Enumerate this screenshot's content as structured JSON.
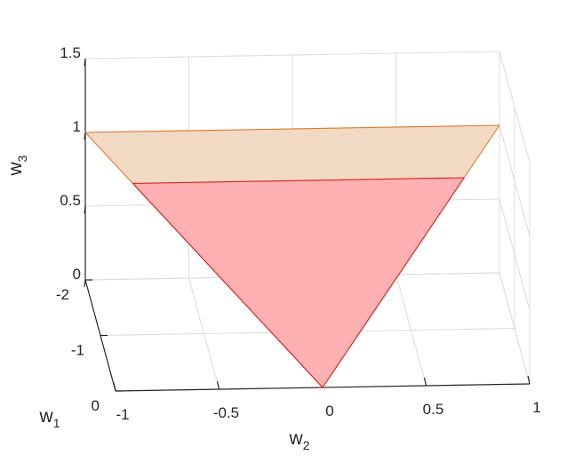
{
  "chart_data": {
    "type": "3d-surface",
    "title": "",
    "axes": {
      "w1": {
        "label": "w",
        "subscript": "1",
        "lim": [
          -2,
          0
        ],
        "ticks": [
          -2,
          -1,
          0
        ],
        "tick_labels": [
          "-2",
          "-1",
          "0"
        ]
      },
      "w2": {
        "label": "w",
        "subscript": "2",
        "lim": [
          -1,
          1
        ],
        "ticks": [
          -1,
          -0.5,
          0,
          0.5,
          1
        ],
        "tick_labels": [
          "-1",
          "-0.5",
          "0",
          "0.5",
          "1"
        ]
      },
      "w3": {
        "label": "w",
        "subscript": "3",
        "lim": [
          0,
          1.5
        ],
        "ticks": [
          0,
          0.5,
          1,
          1.5
        ],
        "tick_labels": [
          "0",
          "0.5",
          "1",
          "1.5"
        ]
      }
    },
    "grid": true,
    "surfaces": [
      {
        "name": "",
        "face_color": "#f2d9c4",
        "edge_color": "#e07a2e",
        "vertices": [
          {
            "w1": 0,
            "w2": 0,
            "w3": 0
          },
          {
            "w1": -2,
            "w2": -1,
            "w3": 1
          },
          {
            "w1": -2,
            "w2": 1,
            "w3": 1
          }
        ]
      },
      {
        "name": "",
        "face_color": "#ffb0b3",
        "edge_color": "#d62020",
        "vertices": [
          {
            "w1": 0,
            "w2": 0,
            "w3": 0
          },
          {
            "w1": -1.6,
            "w2": -0.8,
            "w3": 0.8
          },
          {
            "w1": -1.6,
            "w2": 0.8,
            "w3": 0.8
          }
        ]
      }
    ]
  }
}
